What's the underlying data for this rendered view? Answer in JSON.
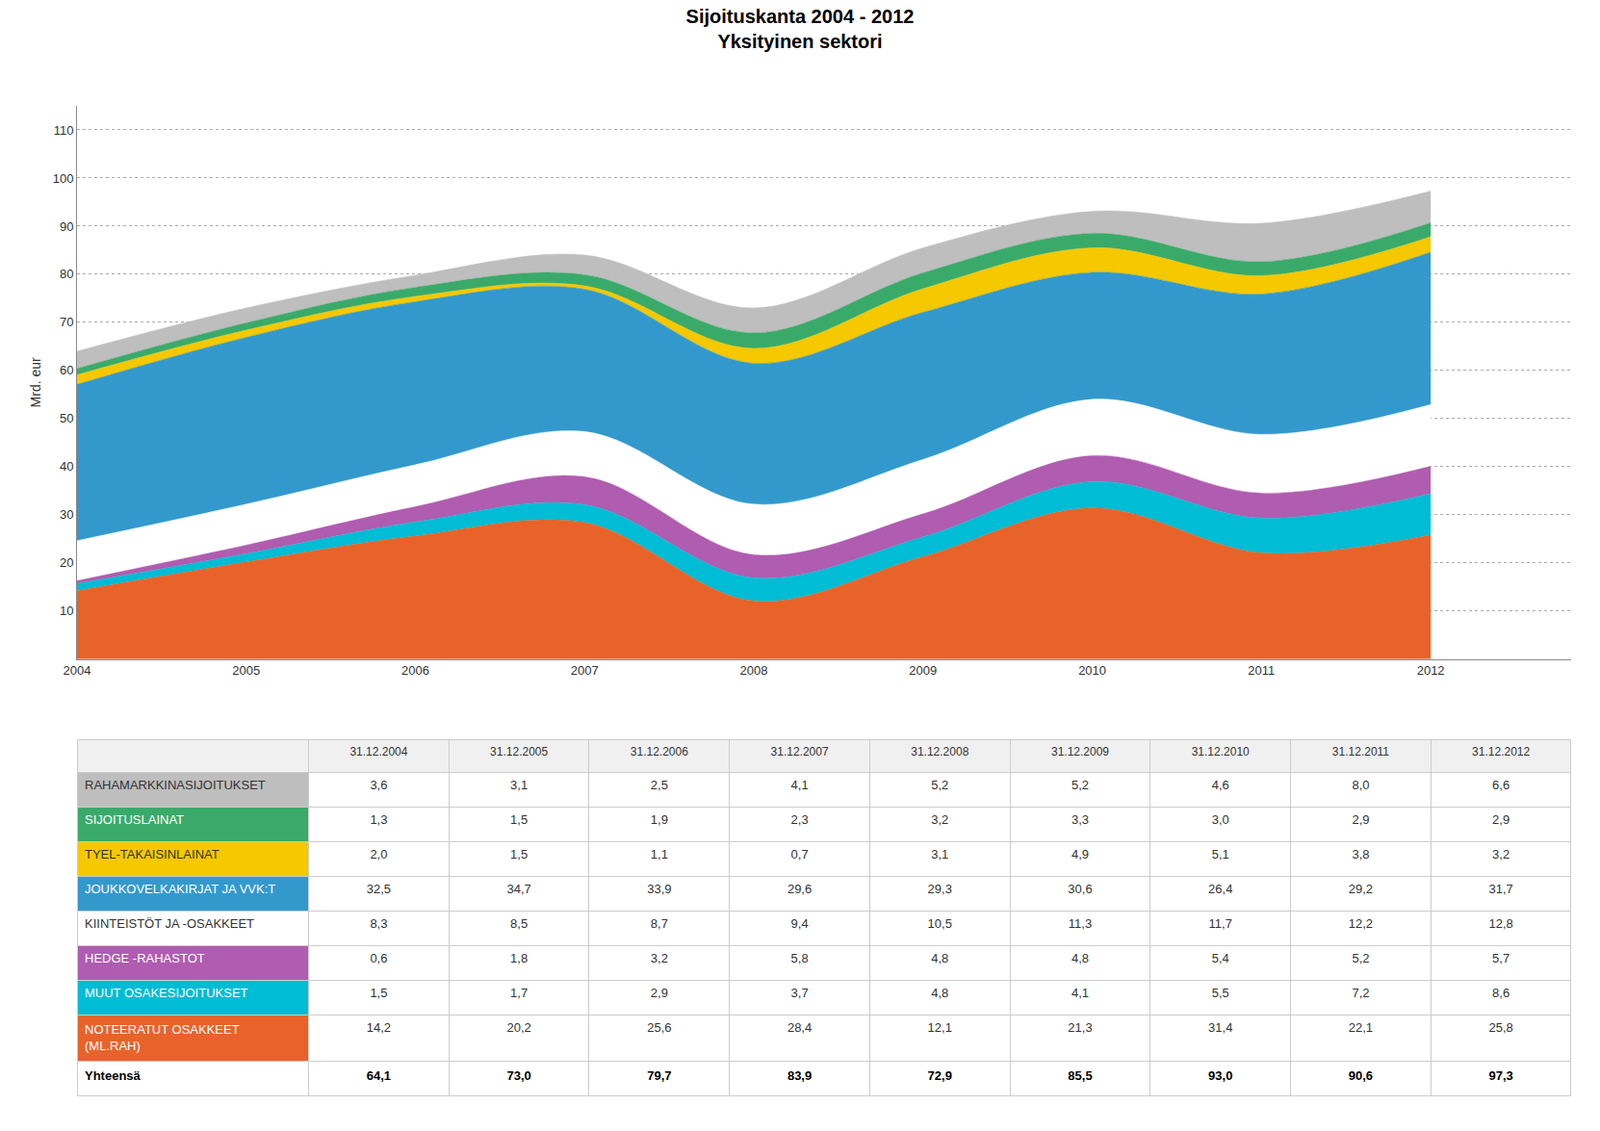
{
  "chart_data": {
    "type": "area",
    "stacked": true,
    "line_style": "spline",
    "grid": true,
    "title": "Sijoituskanta 2004 - 2012",
    "subtitle": "Yksityinen sektori",
    "ylabel": "Mrd. eur",
    "x": [
      2004,
      2005,
      2006,
      2007,
      2008,
      2009,
      2010,
      2011,
      2012
    ],
    "xlim": [
      2004.0,
      2012.83
    ],
    "xticks": [
      2004,
      2005,
      2006,
      2007,
      2008,
      2009,
      2010,
      2011,
      2012
    ],
    "ylim": [
      0,
      115
    ],
    "yticks": [
      10,
      20,
      30,
      40,
      50,
      60,
      70,
      80,
      90,
      100,
      110
    ],
    "series": [
      {
        "name": "NOTEERATUT OSAKKEET (ML.RAH)",
        "color": "#E8632A",
        "values": [
          14.2,
          20.2,
          25.6,
          28.4,
          12.1,
          21.3,
          31.4,
          22.1,
          25.8
        ],
        "value_labels": [
          "14,2",
          "20,2",
          "25,6",
          "28,4",
          "12,1",
          "21,3",
          "31,4",
          "22,1",
          "25,8"
        ]
      },
      {
        "name": "MUUT OSAKESIJOITUKSET",
        "color": "#00BCD4",
        "values": [
          1.5,
          1.7,
          2.9,
          3.7,
          4.8,
          4.1,
          5.5,
          7.2,
          8.6
        ],
        "value_labels": [
          "1,5",
          "1,7",
          "2,9",
          "3,7",
          "4,8",
          "4,1",
          "5,5",
          "7,2",
          "8,6"
        ]
      },
      {
        "name": "HEDGE -RAHASTOT",
        "color": "#B05CB0",
        "values": [
          0.6,
          1.8,
          3.2,
          5.8,
          4.8,
          4.8,
          5.4,
          5.2,
          5.7
        ],
        "value_labels": [
          "0,6",
          "1,8",
          "3,2",
          "5,8",
          "4,8",
          "4,8",
          "5,4",
          "5,2",
          "5,7"
        ]
      },
      {
        "name": "KIINTEISTÖT JA -OSAKKEET",
        "color": "#ffffff",
        "values": [
          8.3,
          8.5,
          8.7,
          9.4,
          10.5,
          11.3,
          11.7,
          12.2,
          12.8
        ],
        "value_labels": [
          "8,3",
          "8,5",
          "8,7",
          "9,4",
          "10,5",
          "11,3",
          "11,7",
          "12,2",
          "12,8"
        ]
      },
      {
        "name": "JOUKKOVELKAKIRJAT JA VVK:T",
        "color": "#3399CC",
        "values": [
          32.5,
          34.7,
          33.9,
          29.6,
          29.3,
          30.6,
          26.4,
          29.2,
          31.7
        ],
        "value_labels": [
          "32,5",
          "34,7",
          "33,9",
          "29,6",
          "29,3",
          "30,6",
          "26,4",
          "29,2",
          "31,7"
        ]
      },
      {
        "name": "TYEL-TAKAISINLAINAT",
        "color": "#F5C800",
        "values": [
          2.0,
          1.5,
          1.1,
          0.7,
          3.1,
          4.9,
          5.1,
          3.8,
          3.2
        ],
        "value_labels": [
          "2,0",
          "1,5",
          "1,1",
          "0,7",
          "3,1",
          "4,9",
          "5,1",
          "3,8",
          "3,2"
        ]
      },
      {
        "name": "SIJOITUSLAINAT",
        "color": "#3AAA6A",
        "values": [
          1.3,
          1.5,
          1.9,
          2.3,
          3.2,
          3.3,
          3.0,
          2.9,
          2.9
        ],
        "value_labels": [
          "1,3",
          "1,5",
          "1,9",
          "2,3",
          "3,2",
          "3,3",
          "3,0",
          "2,9",
          "2,9"
        ]
      },
      {
        "name": "RAHAMARKKINASIJOITUKSET",
        "color": "#BEBEBE",
        "values": [
          3.6,
          3.1,
          2.5,
          4.1,
          5.2,
          5.2,
          4.6,
          8.0,
          6.6
        ],
        "value_labels": [
          "3,6",
          "3,1",
          "2,5",
          "4,1",
          "5,2",
          "5,2",
          "4,6",
          "8,0",
          "6,6"
        ]
      }
    ],
    "table": {
      "columns": [
        "31.12.2004",
        "31.12.2005",
        "31.12.2006",
        "31.12.2007",
        "31.12.2008",
        "31.12.2009",
        "31.12.2010",
        "31.12.2011",
        "31.12.2012"
      ],
      "total_label": "Yhteensä",
      "totals": [
        64.1,
        73.0,
        79.7,
        83.9,
        72.9,
        85.5,
        93.0,
        90.6,
        97.3
      ],
      "total_labels": [
        "64,1",
        "73,0",
        "79,7",
        "83,9",
        "72,9",
        "85,5",
        "93,0",
        "90,6",
        "97,3"
      ]
    }
  }
}
